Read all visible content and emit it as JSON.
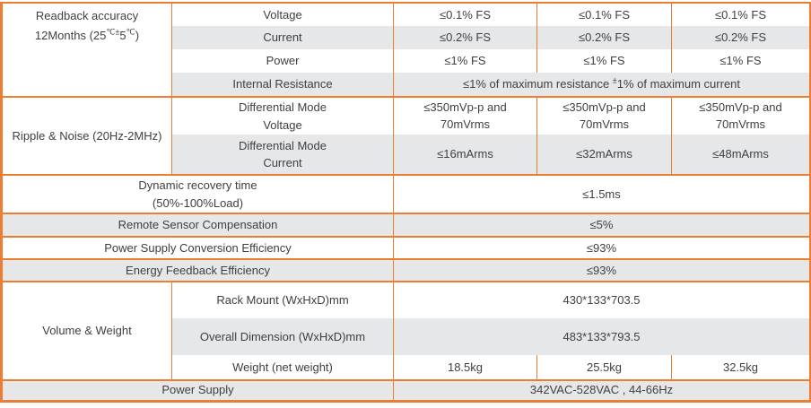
{
  "colors": {
    "border_orange": "#ED7D31",
    "row_stripe_gray": "#E6E7E8",
    "text": "#3F3F3F",
    "background": "#FFFFFF"
  },
  "spec_table": {
    "readback": {
      "label_html": "Readback accuracy<br>12Months (25<sup>℃±</sup>5<sup>℃</sup>)",
      "rows": [
        {
          "name": "Voltage",
          "values": [
            "≤0.1% FS",
            "≤0.1% FS",
            "≤0.1% FS"
          ]
        },
        {
          "name": "Current",
          "values": [
            "≤0.2% FS",
            "≤0.2% FS",
            "≤0.2% FS"
          ]
        },
        {
          "name": "Power",
          "values": [
            "≤1% FS",
            "≤1% FS",
            "≤1% FS"
          ]
        }
      ],
      "internal_resistance": {
        "name": "Internal Resistance",
        "value_html": "≤1% of maximum resistance <sup>±</sup>1% of maximum current"
      }
    },
    "ripple": {
      "label": "Ripple & Noise (20Hz-2MHz)",
      "rows": [
        {
          "name_html": "Differential Mode<br>Voltage",
          "values": [
            "≤350mVp-p and 70mVrms",
            "≤350mVp-p and 70mVrms",
            "≤350mVp-p and 70mVrms"
          ]
        },
        {
          "name_html": "Differential Mode<br>Current",
          "values": [
            "≤16mArms",
            "≤32mArms",
            "≤48mArms"
          ]
        }
      ]
    },
    "single_rows": [
      {
        "label_html": "Dynamic recovery time<br>(50%-100%Load)",
        "value": "≤1.5ms"
      },
      {
        "label": "Remote Sensor Compensation",
        "value": "≤5%"
      },
      {
        "label": "Power Supply Conversion Efficiency",
        "value": "≤93%"
      },
      {
        "label": "Energy Feedback Efficiency",
        "value": "≤93%"
      }
    ],
    "volume_weight": {
      "label": "Volume & Weight",
      "rack_mount": {
        "name": "Rack Mount (WxHxD)mm",
        "value": "430*133*703.5"
      },
      "overall_dimension": {
        "name": "Overall Dimension (WxHxD)mm",
        "value": "483*133*793.5"
      },
      "weight": {
        "name": "Weight (net weight)",
        "values": [
          "18.5kg",
          "25.5kg",
          "32.5kg"
        ]
      }
    },
    "power_supply": {
      "label": "Power Supply",
      "value": "342VAC-528VAC , 44-66Hz"
    }
  }
}
